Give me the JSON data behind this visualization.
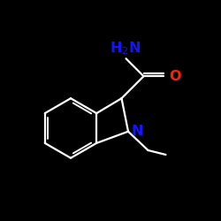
{
  "bg_color": "#000000",
  "line_color": "#ffffff",
  "n_color": "#1414ff",
  "o_color": "#ff2200",
  "figsize": [
    2.5,
    2.5
  ],
  "dpi": 100,
  "lw": 1.6
}
